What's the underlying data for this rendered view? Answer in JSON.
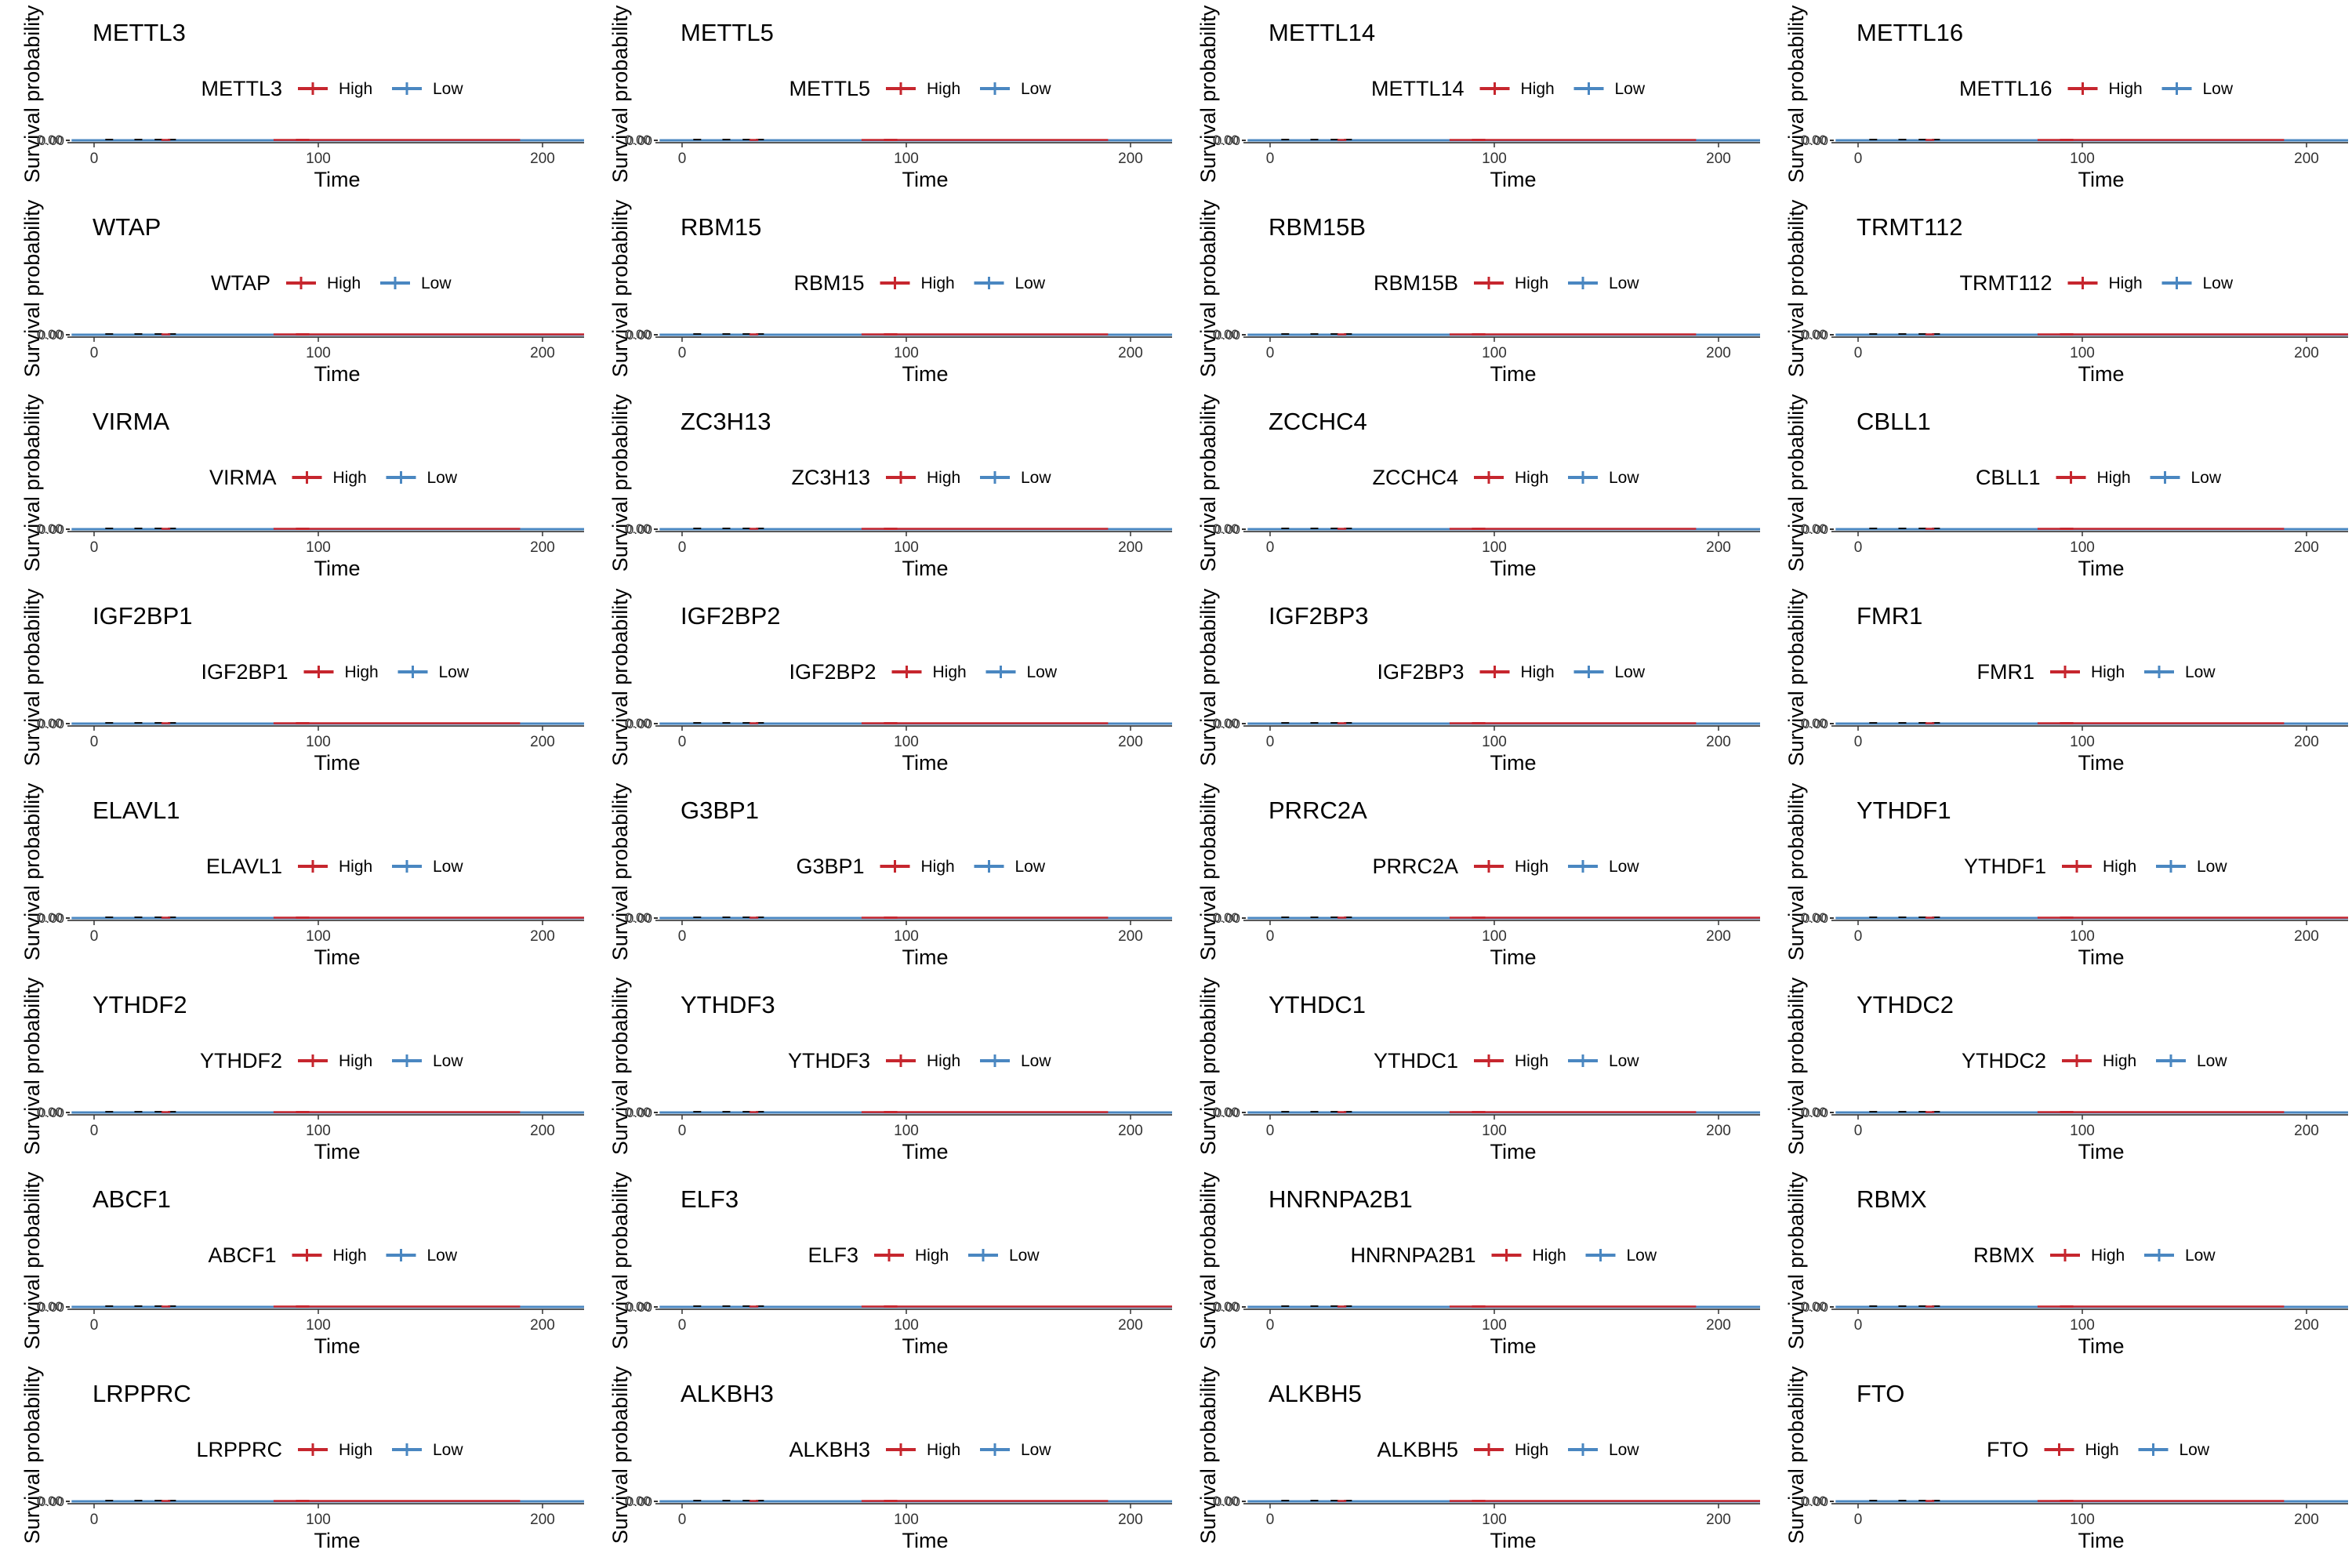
{
  "chart_data": {
    "type": "line",
    "layout": "8 rows x 4 columns of Kaplan-Meier survival panels",
    "xlabel": "Time",
    "ylabel": "Survival probability",
    "x_ticks": [
      0,
      100,
      200
    ],
    "y_tick_label": "0.00",
    "legend_entries": [
      "High",
      "Low"
    ],
    "legend_placement": "top",
    "colors": {
      "High": "#C6262E",
      "Low": "#4A87C1"
    },
    "panels": [
      {
        "gene": "METTL3",
        "high_extends_further": false
      },
      {
        "gene": "METTL5",
        "high_extends_further": false
      },
      {
        "gene": "METTL14",
        "high_extends_further": false
      },
      {
        "gene": "METTL16",
        "high_extends_further": false
      },
      {
        "gene": "WTAP",
        "high_extends_further": true
      },
      {
        "gene": "RBM15",
        "high_extends_further": false
      },
      {
        "gene": "RBM15B",
        "high_extends_further": false
      },
      {
        "gene": "TRMT112",
        "high_extends_further": true
      },
      {
        "gene": "VIRMA",
        "high_extends_further": false
      },
      {
        "gene": "ZC3H13",
        "high_extends_further": false
      },
      {
        "gene": "ZCCHC4",
        "high_extends_further": false
      },
      {
        "gene": "CBLL1",
        "high_extends_further": false
      },
      {
        "gene": "IGF2BP1",
        "high_extends_further": false
      },
      {
        "gene": "IGF2BP2",
        "high_extends_further": false
      },
      {
        "gene": "IGF2BP3",
        "high_extends_further": false
      },
      {
        "gene": "FMR1",
        "high_extends_further": false
      },
      {
        "gene": "ELAVL1",
        "high_extends_further": true
      },
      {
        "gene": "G3BP1",
        "high_extends_further": false
      },
      {
        "gene": "PRRC2A",
        "high_extends_further": true
      },
      {
        "gene": "YTHDF1",
        "high_extends_further": true
      },
      {
        "gene": "YTHDF2",
        "high_extends_further": false
      },
      {
        "gene": "YTHDF3",
        "high_extends_further": false
      },
      {
        "gene": "YTHDC1",
        "high_extends_further": false
      },
      {
        "gene": "YTHDC2",
        "high_extends_further": false
      },
      {
        "gene": "ABCF1",
        "high_extends_further": false
      },
      {
        "gene": "ELF3",
        "high_extends_further": true
      },
      {
        "gene": "HNRNPA2B1",
        "high_extends_further": false
      },
      {
        "gene": "RBMX",
        "high_extends_further": false
      },
      {
        "gene": "LRPPRC",
        "high_extends_further": false
      },
      {
        "gene": "ALKBH3",
        "high_extends_further": false
      },
      {
        "gene": "ALKBH5",
        "high_extends_further": true
      },
      {
        "gene": "FTO",
        "high_extends_further": false
      }
    ]
  }
}
